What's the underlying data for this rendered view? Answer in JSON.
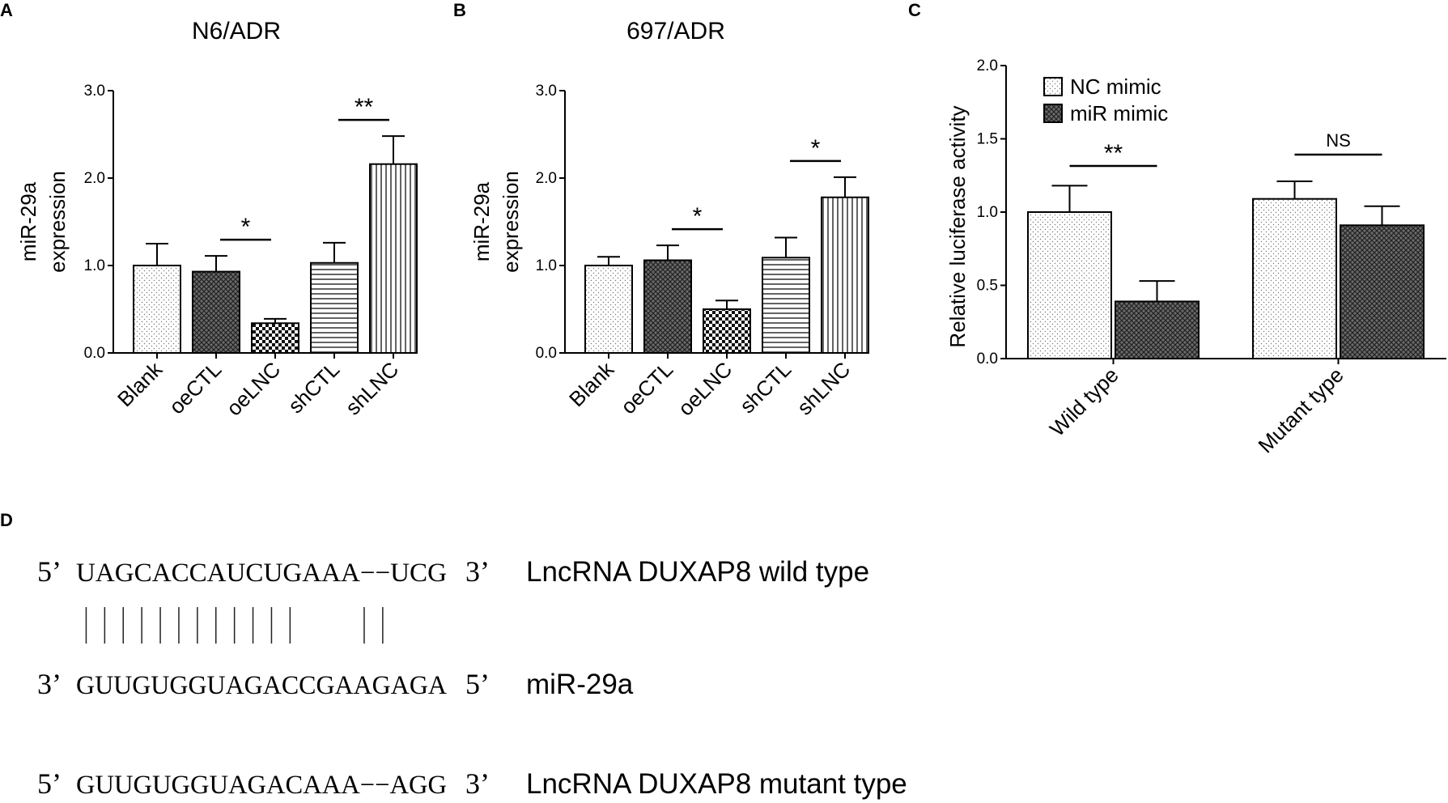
{
  "panels": {
    "a": "A",
    "b": "B",
    "c": "C",
    "d": "D"
  },
  "chart_data": [
    {
      "panel": "A",
      "type": "bar",
      "title": "N6/ADR",
      "ylabel_line1": "miR-29a",
      "ylabel_line2": "expression",
      "ylim": [
        0,
        3.0
      ],
      "yticks": [
        "0.0",
        "1.0",
        "2.0",
        "3.0"
      ],
      "categories": [
        "Blank",
        "oeCTL",
        "oeLNC",
        "shCTL",
        "shLNC"
      ],
      "values": [
        1.0,
        0.93,
        0.34,
        1.03,
        2.16
      ],
      "errors": [
        0.25,
        0.18,
        0.05,
        0.23,
        0.32
      ],
      "significance": [
        {
          "from": 1,
          "to": 2,
          "label": "*"
        },
        {
          "from": 3,
          "to": 4,
          "label": "**"
        }
      ]
    },
    {
      "panel": "B",
      "type": "bar",
      "title": "697/ADR",
      "ylabel_line1": "miR-29a",
      "ylabel_line2": "expression",
      "ylim": [
        0,
        3.0
      ],
      "yticks": [
        "0.0",
        "1.0",
        "2.0",
        "3.0"
      ],
      "categories": [
        "Blank",
        "oeCTL",
        "oeLNC",
        "shCTL",
        "shLNC"
      ],
      "values": [
        1.0,
        1.06,
        0.5,
        1.09,
        1.78
      ],
      "errors": [
        0.1,
        0.17,
        0.1,
        0.23,
        0.23
      ],
      "significance": [
        {
          "from": 1,
          "to": 2,
          "label": "*"
        },
        {
          "from": 3,
          "to": 4,
          "label": "*"
        }
      ]
    },
    {
      "panel": "C",
      "type": "bar",
      "title": "",
      "ylabel": "Relative luciferase activity",
      "ylim": [
        0,
        2.0
      ],
      "yticks": [
        "0.0",
        "0.5",
        "1.0",
        "1.5",
        "2.0"
      ],
      "categories": [
        "Wild type",
        "Mutant type"
      ],
      "series": [
        {
          "name": "NC mimic",
          "values": [
            1.0,
            1.09
          ],
          "errors": [
            0.18,
            0.12
          ]
        },
        {
          "name": "miR mimic",
          "values": [
            0.39,
            0.91
          ],
          "errors": [
            0.14,
            0.13
          ]
        }
      ],
      "significance": [
        {
          "group": 0,
          "label": "**"
        },
        {
          "group": 1,
          "label": "NS"
        }
      ],
      "legend": "top-left"
    }
  ],
  "sequences": [
    {
      "prime_left": "5’",
      "seq": "UAGCACCAUCUGAAA−−UCG",
      "prime_right": "3’",
      "label": "LncRNA DUXAP8 wild type"
    },
    {
      "prime_left": "3’",
      "seq": "GUUGUGGUAGACCGAAGAGA",
      "prime_right": "5’",
      "label": "miR-29a"
    },
    {
      "prime_left": "5’",
      "seq": "GUUGUGGUAGACAAA−−AGG",
      "prime_right": "3’",
      "label": "LncRNA DUXAP8 mutant type"
    }
  ]
}
